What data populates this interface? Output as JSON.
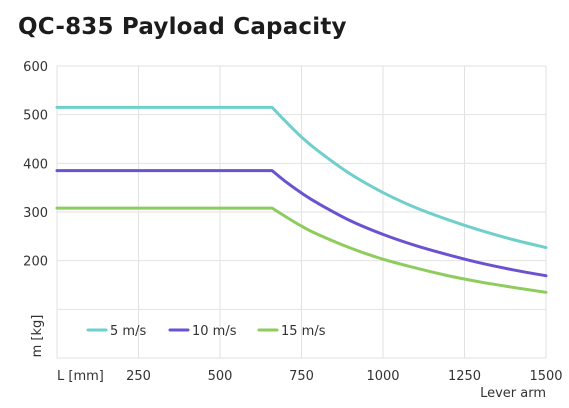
{
  "chart_data": {
    "type": "line",
    "title": "QC-835 Payload Capacity",
    "xlabel": "Lever arm",
    "x_unit_label": "L [mm]",
    "ylabel": "m [kg]",
    "xlim": [
      0,
      1500
    ],
    "ylim": [
      0,
      600
    ],
    "x_ticks": [
      250,
      500,
      750,
      1000,
      1250,
      1500
    ],
    "y_ticks": [
      200,
      300,
      400,
      500,
      600
    ],
    "grid": true,
    "legend_position": "bottom-left",
    "series": [
      {
        "name": "5 m/s",
        "color": "#6fcfcb",
        "x": [
          0,
          660,
          700,
          750,
          800,
          900,
          1000,
          1100,
          1200,
          1300,
          1400,
          1500
        ],
        "y": [
          515,
          515,
          487,
          454,
          426,
          378,
          340,
          309,
          284,
          262,
          243,
          227
        ]
      },
      {
        "name": "10 m/s",
        "color": "#6b52d1",
        "x": [
          0,
          660,
          700,
          750,
          800,
          900,
          1000,
          1100,
          1200,
          1300,
          1400,
          1500
        ],
        "y": [
          385,
          385,
          363,
          339,
          318,
          282,
          254,
          231,
          212,
          195,
          181,
          169
        ]
      },
      {
        "name": "15 m/s",
        "color": "#8dcc5d",
        "x": [
          0,
          660,
          700,
          750,
          800,
          900,
          1000,
          1100,
          1200,
          1300,
          1400,
          1500
        ],
        "y": [
          308,
          308,
          291,
          271,
          254,
          226,
          203,
          185,
          169,
          156,
          145,
          135
        ]
      }
    ]
  }
}
